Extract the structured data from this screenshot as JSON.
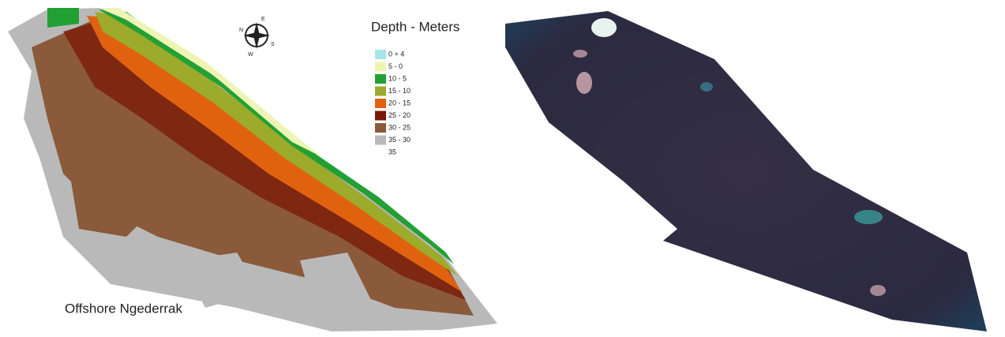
{
  "map": {
    "legend_title": "Depth - Meters",
    "legend": [
      {
        "label": "0 + 4",
        "color": "#a8e4ea"
      },
      {
        "label": "5 - 0",
        "color": "#eef5b4"
      },
      {
        "label": "10 -  5",
        "color": "#22a034"
      },
      {
        "label": "15 -  10",
        "color": "#9cab2c"
      },
      {
        "label": "20 -  15",
        "color": "#e0620f"
      },
      {
        "label": "25 -  20",
        "color": "#7a1a08"
      },
      {
        "label": "30 -  25",
        "color": "#8b5a3a"
      },
      {
        "label": "35 -  30",
        "color": "#b9b9b9"
      },
      {
        "label": "35",
        "color": "#ffffff"
      }
    ],
    "site_label": "Offshore Ngederrak",
    "compass": {
      "n": "N",
      "e": "E",
      "s": "S",
      "w": "W"
    }
  }
}
